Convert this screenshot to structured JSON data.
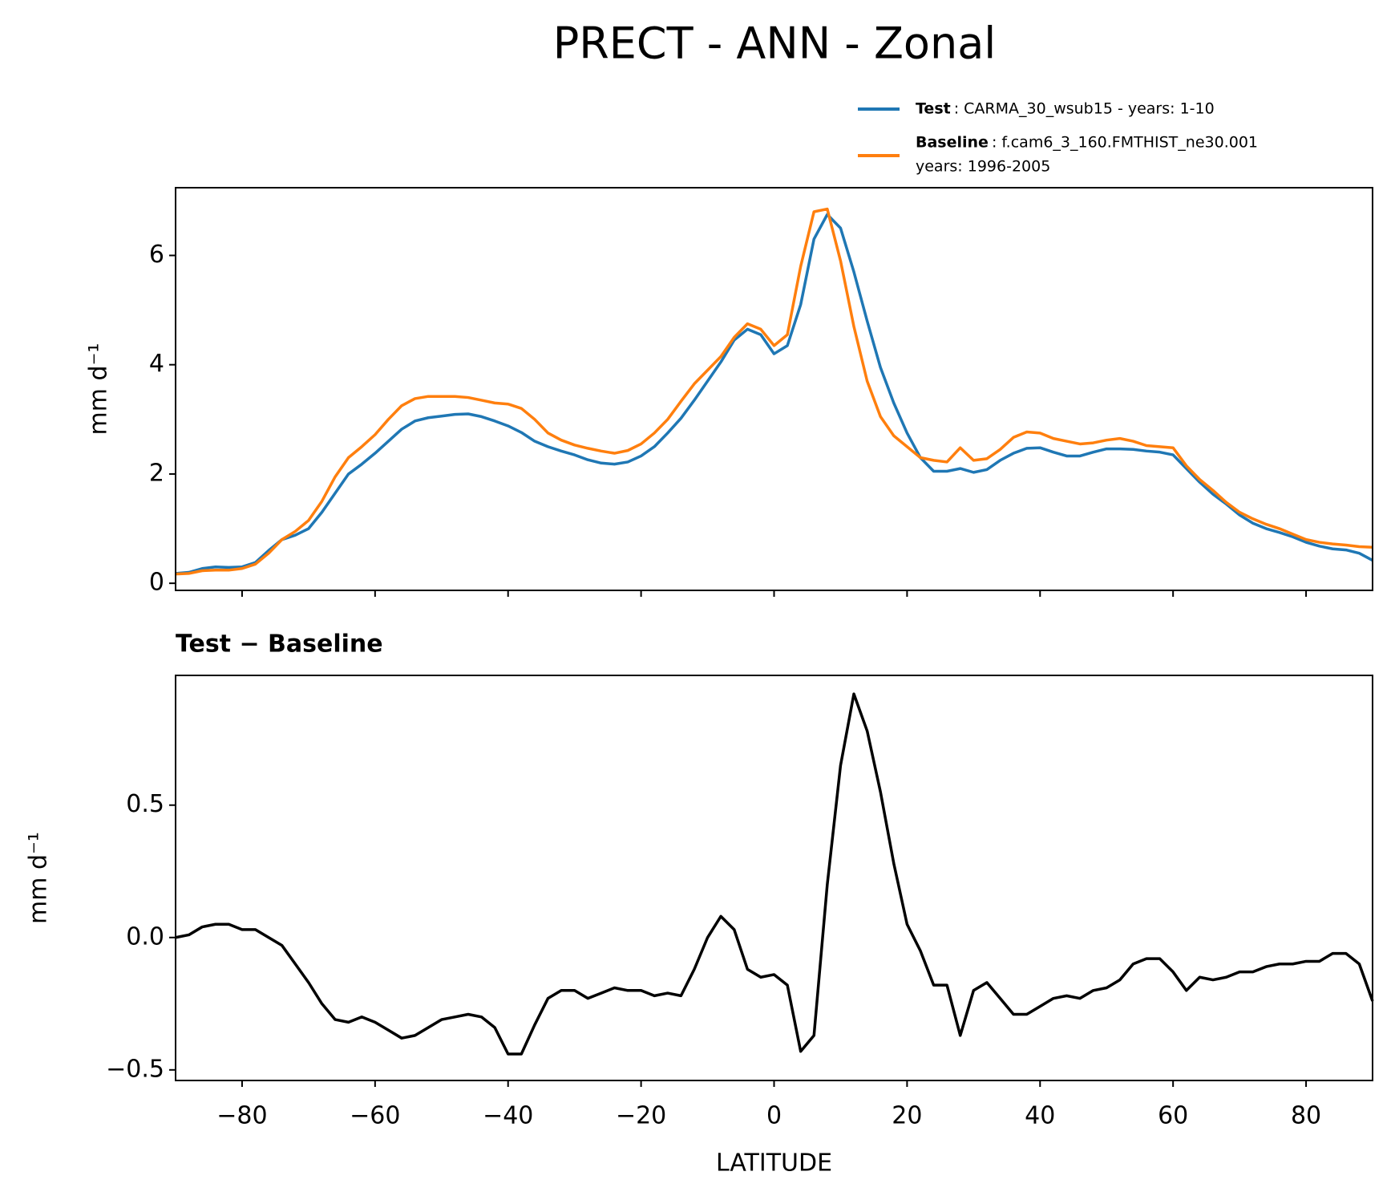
{
  "chart_data": [
    {
      "type": "line",
      "title": "PRECT - ANN - Zonal",
      "ylabel": "mm d⁻¹",
      "x": [
        -90,
        -88,
        -86,
        -84,
        -82,
        -80,
        -78,
        -76,
        -74,
        -72,
        -70,
        -68,
        -66,
        -64,
        -62,
        -60,
        -58,
        -56,
        -54,
        -52,
        -50,
        -48,
        -46,
        -44,
        -42,
        -40,
        -38,
        -36,
        -34,
        -32,
        -30,
        -28,
        -26,
        -24,
        -22,
        -20,
        -18,
        -16,
        -14,
        -12,
        -10,
        -8,
        -6,
        -4,
        -2,
        0,
        2,
        4,
        6,
        8,
        10,
        12,
        14,
        16,
        18,
        20,
        22,
        24,
        26,
        28,
        30,
        32,
        34,
        36,
        38,
        40,
        42,
        44,
        46,
        48,
        50,
        52,
        54,
        56,
        58,
        60,
        62,
        64,
        66,
        68,
        70,
        72,
        74,
        76,
        78,
        80,
        82,
        84,
        86,
        88,
        90
      ],
      "xlim": [
        -90,
        90
      ],
      "xticks": [
        -80,
        -60,
        -40,
        -20,
        0,
        20,
        40,
        60,
        80
      ],
      "show_xticklabels": false,
      "ylim": [
        -0.13,
        7.24
      ],
      "yticks": [
        0,
        2,
        4,
        6
      ],
      "series": [
        {
          "name": "Test",
          "description": [
            ": CARMA_30_wsub15 - years: 1-10"
          ],
          "color": "#1f77b4",
          "values": [
            0.18,
            0.2,
            0.27,
            0.3,
            0.29,
            0.3,
            0.38,
            0.6,
            0.8,
            0.88,
            1.0,
            1.3,
            1.65,
            2.0,
            2.18,
            2.38,
            2.6,
            2.82,
            2.97,
            3.03,
            3.06,
            3.09,
            3.1,
            3.05,
            2.97,
            2.88,
            2.76,
            2.6,
            2.5,
            2.42,
            2.35,
            2.26,
            2.2,
            2.18,
            2.22,
            2.33,
            2.5,
            2.75,
            3.02,
            3.35,
            3.7,
            4.05,
            4.45,
            4.65,
            4.55,
            4.2,
            4.35,
            5.1,
            6.3,
            6.75,
            6.5,
            5.7,
            4.8,
            3.95,
            3.3,
            2.75,
            2.3,
            2.05,
            2.05,
            2.1,
            2.03,
            2.08,
            2.25,
            2.38,
            2.47,
            2.48,
            2.4,
            2.33,
            2.33,
            2.4,
            2.46,
            2.46,
            2.45,
            2.42,
            2.4,
            2.35,
            2.1,
            1.85,
            1.63,
            1.45,
            1.25,
            1.1,
            1.0,
            0.93,
            0.85,
            0.75,
            0.68,
            0.63,
            0.61,
            0.55,
            0.42
          ]
        },
        {
          "name": "Baseline",
          "description": [
            ": f.cam6_3_160.FMTHIST_ne30.001",
            "years: 1996-2005"
          ],
          "color": "#ff7f0e",
          "values": [
            0.17,
            0.18,
            0.23,
            0.24,
            0.24,
            0.27,
            0.35,
            0.55,
            0.8,
            0.95,
            1.15,
            1.5,
            1.95,
            2.3,
            2.5,
            2.72,
            3.0,
            3.25,
            3.38,
            3.42,
            3.42,
            3.42,
            3.4,
            3.35,
            3.3,
            3.28,
            3.2,
            3.0,
            2.75,
            2.62,
            2.53,
            2.47,
            2.42,
            2.38,
            2.43,
            2.55,
            2.75,
            3.0,
            3.33,
            3.65,
            3.9,
            4.15,
            4.5,
            4.75,
            4.65,
            4.35,
            4.55,
            5.8,
            6.8,
            6.85,
            5.9,
            4.7,
            3.7,
            3.05,
            2.7,
            2.5,
            2.3,
            2.25,
            2.22,
            2.48,
            2.25,
            2.28,
            2.45,
            2.67,
            2.77,
            2.75,
            2.65,
            2.6,
            2.55,
            2.57,
            2.62,
            2.65,
            2.6,
            2.52,
            2.5,
            2.48,
            2.15,
            1.9,
            1.7,
            1.48,
            1.3,
            1.18,
            1.08,
            1.0,
            0.9,
            0.8,
            0.75,
            0.72,
            0.7,
            0.67,
            0.66
          ]
        }
      ]
    },
    {
      "type": "line",
      "subtitle": "Test − Baseline",
      "ylabel": "mm d⁻¹",
      "xlabel": "LATITUDE",
      "x": [
        -90,
        -88,
        -86,
        -84,
        -82,
        -80,
        -78,
        -76,
        -74,
        -72,
        -70,
        -68,
        -66,
        -64,
        -62,
        -60,
        -58,
        -56,
        -54,
        -52,
        -50,
        -48,
        -46,
        -44,
        -42,
        -40,
        -38,
        -36,
        -34,
        -32,
        -30,
        -28,
        -26,
        -24,
        -22,
        -20,
        -18,
        -16,
        -14,
        -12,
        -10,
        -8,
        -6,
        -4,
        -2,
        0,
        2,
        4,
        6,
        8,
        10,
        12,
        14,
        16,
        18,
        20,
        22,
        24,
        26,
        28,
        30,
        32,
        34,
        36,
        38,
        40,
        42,
        44,
        46,
        48,
        50,
        52,
        54,
        56,
        58,
        60,
        62,
        64,
        66,
        68,
        70,
        72,
        74,
        76,
        78,
        80,
        82,
        84,
        86,
        88,
        90
      ],
      "xlim": [
        -90,
        90
      ],
      "xticks": [
        {
          "value": -80,
          "label": "−80"
        },
        {
          "value": -60,
          "label": "−60"
        },
        {
          "value": -40,
          "label": "−40"
        },
        {
          "value": -20,
          "label": "−20"
        },
        0,
        20,
        40,
        60,
        80
      ],
      "show_xticklabels": true,
      "ylim": [
        -0.54,
        0.99
      ],
      "yticks": [
        {
          "value": -0.5,
          "label": "−0.5"
        },
        {
          "value": 0,
          "label": "0.0"
        },
        0.5
      ],
      "series": [
        {
          "color": "#000000",
          "values": [
            0.0,
            0.01,
            0.04,
            0.05,
            0.05,
            0.03,
            0.03,
            0.0,
            -0.03,
            -0.1,
            -0.17,
            -0.25,
            -0.31,
            -0.32,
            -0.3,
            -0.32,
            -0.35,
            -0.38,
            -0.37,
            -0.34,
            -0.31,
            -0.3,
            -0.29,
            -0.3,
            -0.34,
            -0.44,
            -0.44,
            -0.33,
            -0.23,
            -0.2,
            -0.2,
            -0.23,
            -0.21,
            -0.19,
            -0.2,
            -0.2,
            -0.22,
            -0.21,
            -0.22,
            -0.12,
            0.0,
            0.08,
            0.03,
            -0.12,
            -0.15,
            -0.14,
            -0.18,
            -0.43,
            -0.37,
            0.2,
            0.65,
            0.92,
            0.78,
            0.55,
            0.28,
            0.05,
            -0.05,
            -0.18,
            -0.18,
            -0.37,
            -0.2,
            -0.17,
            -0.23,
            -0.29,
            -0.29,
            -0.26,
            -0.23,
            -0.22,
            -0.23,
            -0.2,
            -0.19,
            -0.16,
            -0.1,
            -0.08,
            -0.08,
            -0.13,
            -0.2,
            -0.15,
            -0.16,
            -0.15,
            -0.13,
            -0.13,
            -0.11,
            -0.1,
            -0.1,
            -0.09,
            -0.09,
            -0.06,
            -0.06,
            -0.1,
            -0.24
          ]
        }
      ]
    }
  ]
}
